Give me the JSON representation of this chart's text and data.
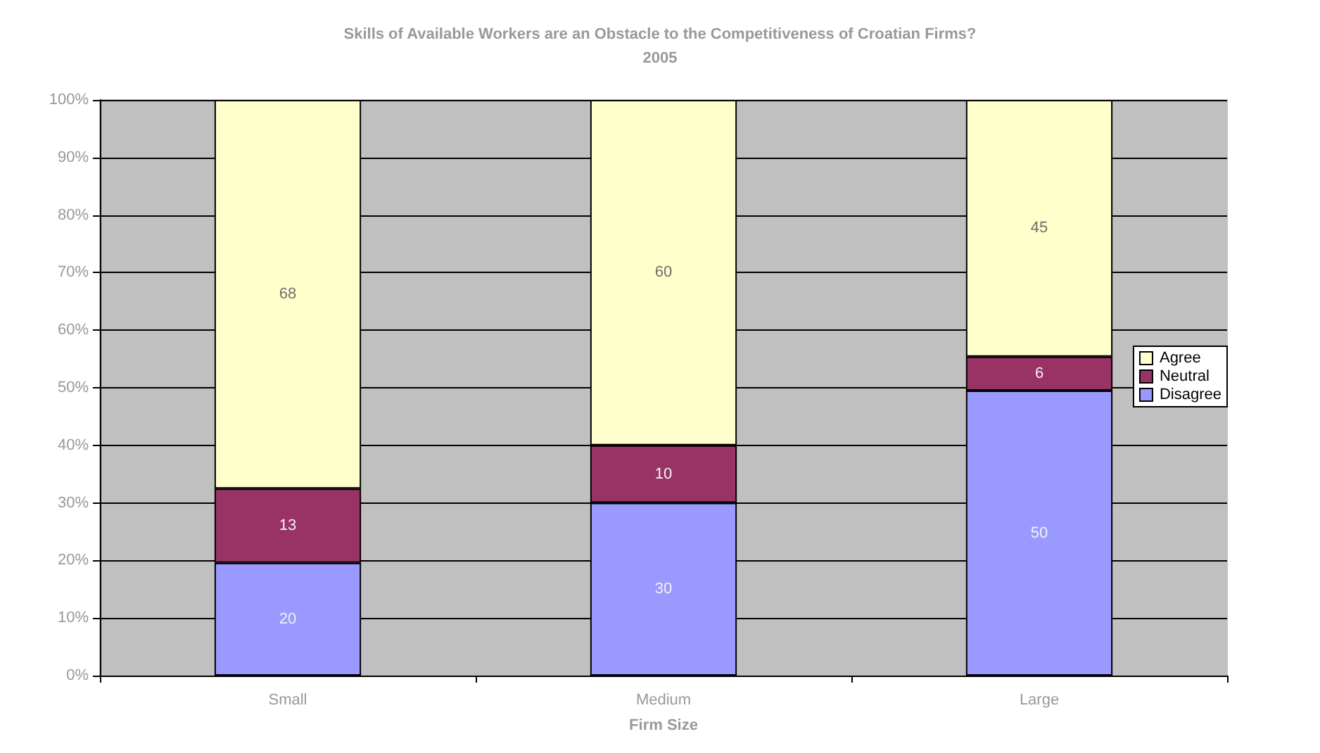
{
  "chart_data": {
    "type": "bar",
    "stacked": true,
    "title": "Skills of Available Workers are an Obstacle to the Competitiveness of Croatian Firms?",
    "subtitle": "2005",
    "xlabel": "Firm Size",
    "categories": [
      "Small",
      "Medium",
      "Large"
    ],
    "series": [
      {
        "name": "Disagree",
        "color": "#9999ff",
        "values": [
          19.6,
          30,
          49.5
        ],
        "value_labels": [
          "20",
          "30",
          "50"
        ]
      },
      {
        "name": "Neutral",
        "color": "#993366",
        "values": [
          12.9,
          10,
          5.9
        ],
        "value_labels": [
          "13",
          "10",
          "6"
        ]
      },
      {
        "name": "Agree",
        "color": "#ffffcc",
        "values": [
          67.5,
          60,
          44.6
        ],
        "value_labels": [
          "68",
          "60",
          "45"
        ]
      }
    ],
    "ylim": [
      0,
      100
    ],
    "yticks": [
      {
        "value": 0,
        "label": "0%"
      },
      {
        "value": 10,
        "label": "10%"
      },
      {
        "value": 20,
        "label": "20%"
      },
      {
        "value": 30,
        "label": "30%"
      },
      {
        "value": 40,
        "label": "40%"
      },
      {
        "value": 50,
        "label": "50%"
      },
      {
        "value": 60,
        "label": "60%"
      },
      {
        "value": 70,
        "label": "70%"
      },
      {
        "value": 80,
        "label": "80%"
      },
      {
        "value": 90,
        "label": "90%"
      },
      {
        "value": 100,
        "label": "100%"
      }
    ],
    "grid": "y",
    "legend": "right"
  }
}
